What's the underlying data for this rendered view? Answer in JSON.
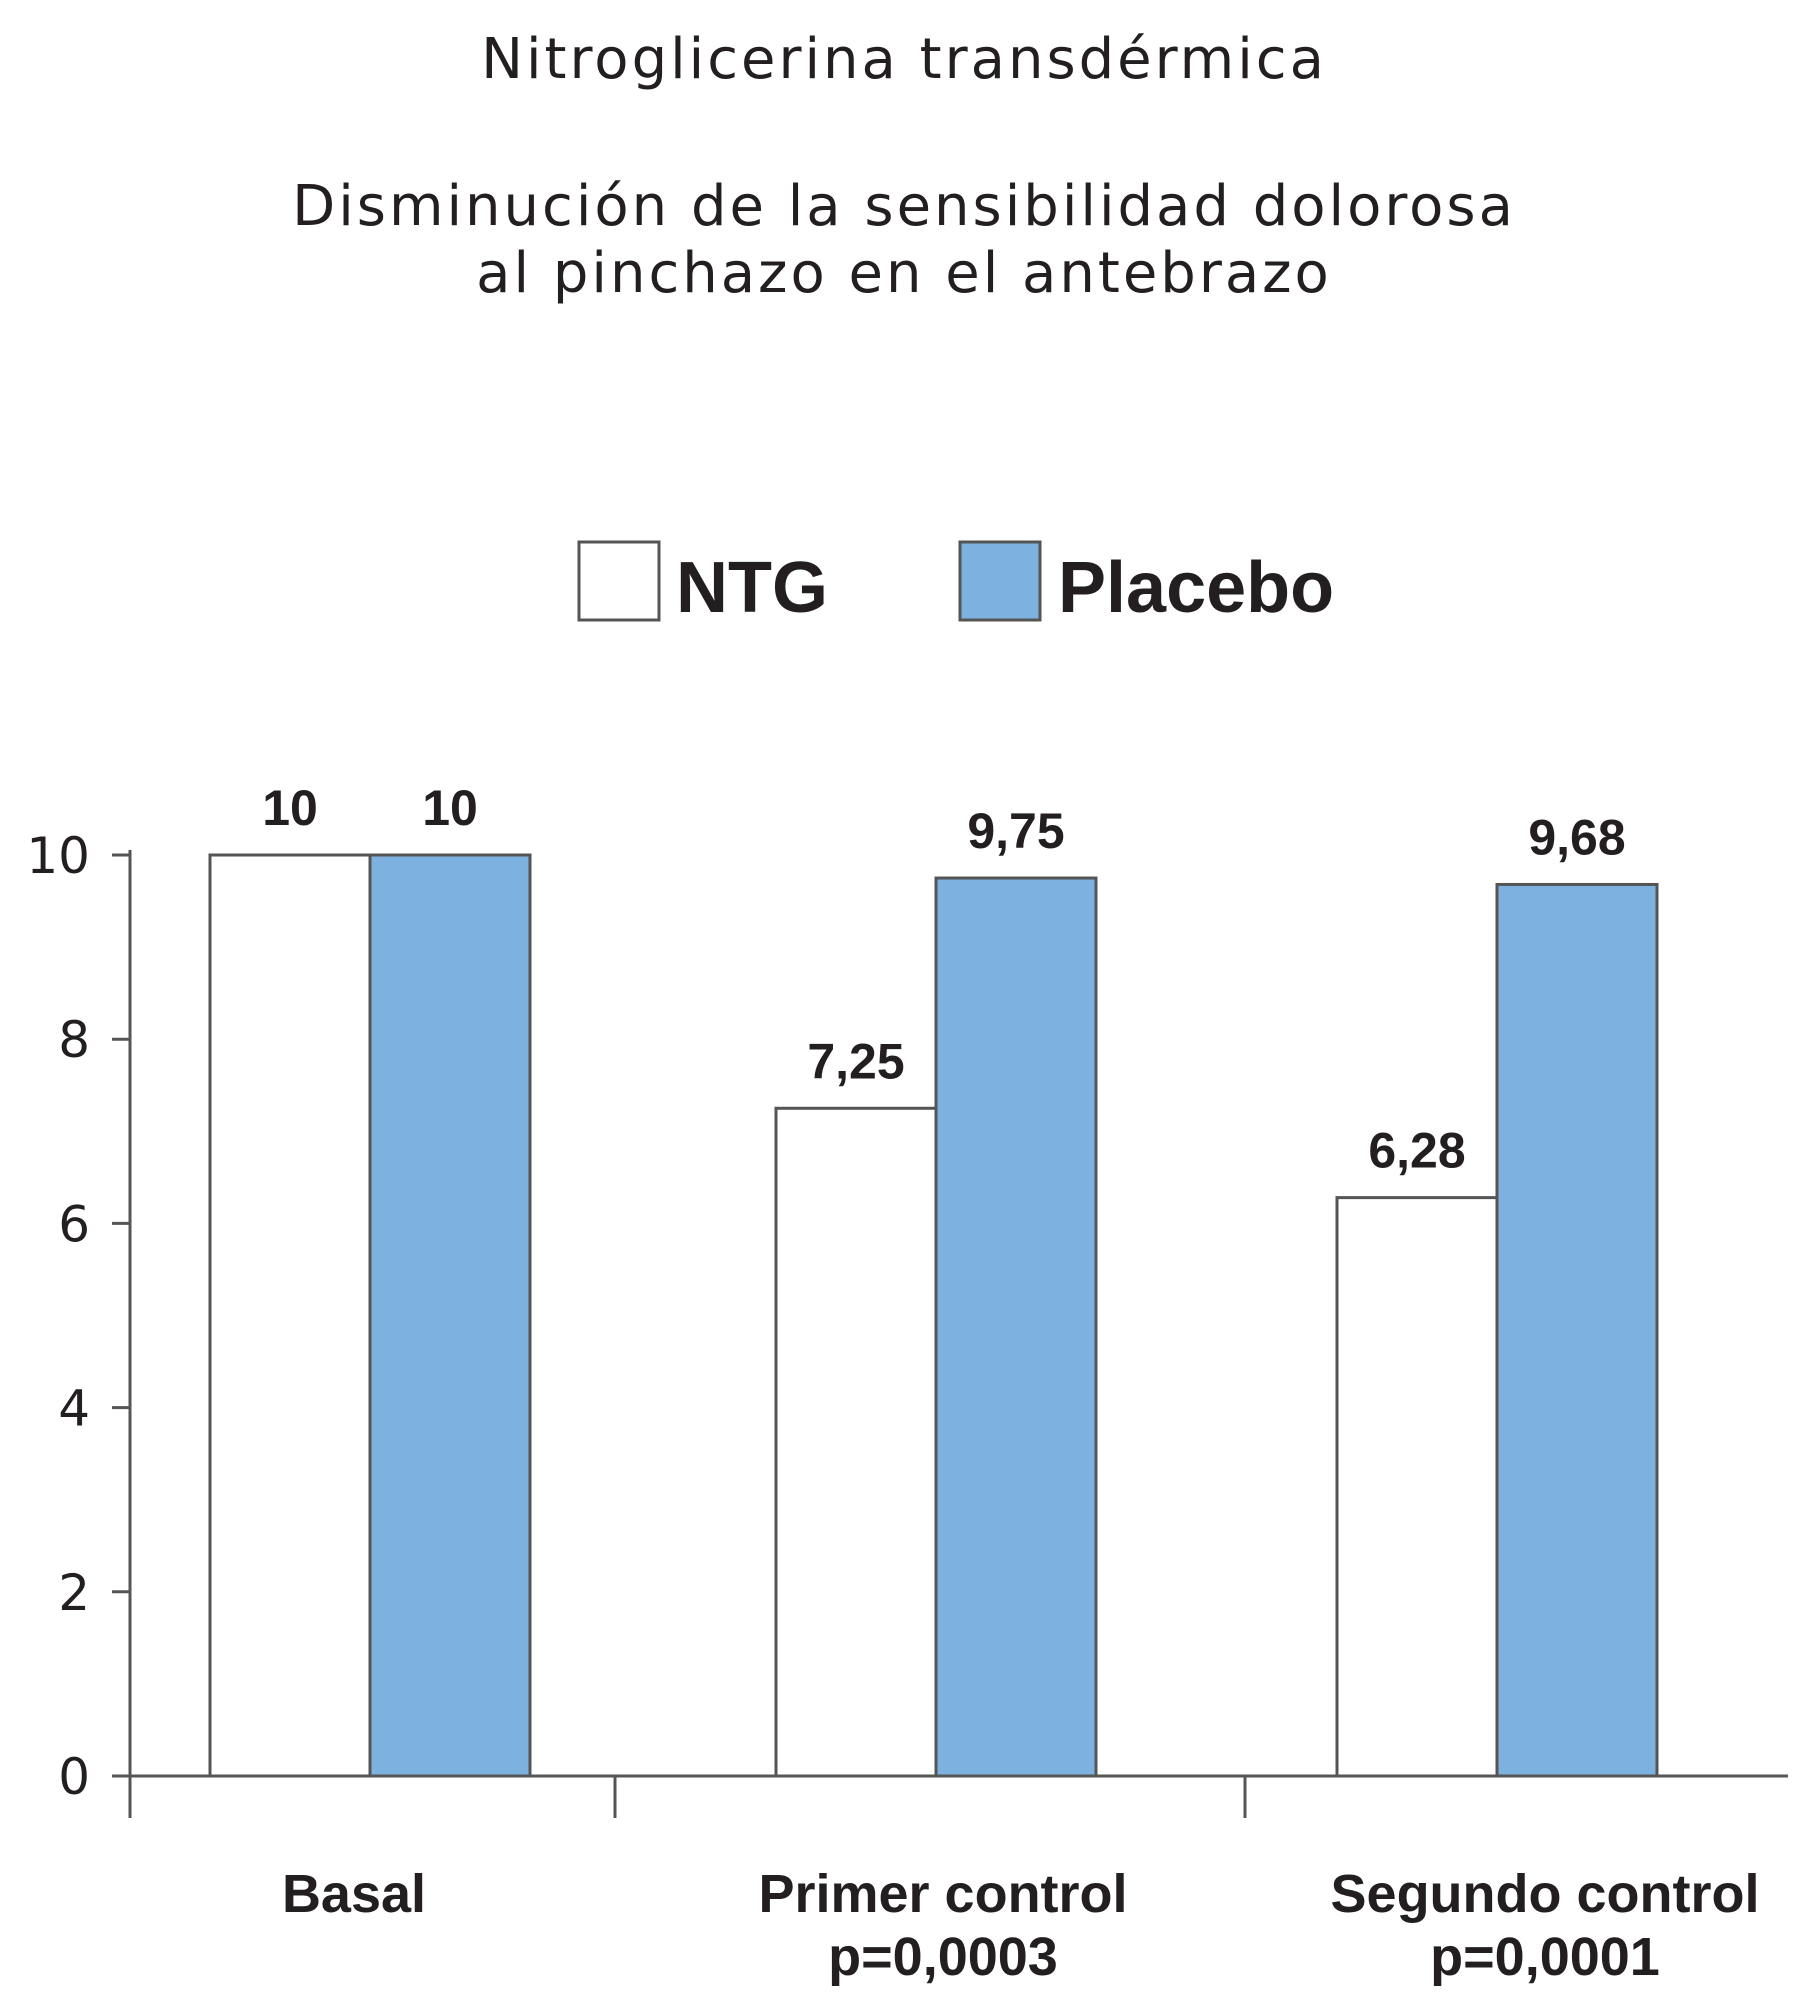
{
  "chart_data": {
    "type": "bar",
    "title": "Nitroglicerina transdérmica",
    "subtitle": [
      "Disminución de la sensibilidad dolorosa",
      "al pinchazo en el antebrazo"
    ],
    "categories": [
      {
        "label": "Basal",
        "note": ""
      },
      {
        "label": "Primer control",
        "note": "p=0,0003"
      },
      {
        "label": "Segundo control",
        "note": "p=0,0001"
      }
    ],
    "series": [
      {
        "name": "NTG",
        "color": "#ffffff",
        "values": [
          10,
          7.25,
          6.28
        ],
        "labels": [
          "10",
          "7,25",
          "6,28"
        ]
      },
      {
        "name": "Placebo",
        "color": "#7db1e0",
        "values": [
          10,
          9.75,
          9.68
        ],
        "labels": [
          "10",
          "9,75",
          "9,68"
        ]
      }
    ],
    "yticks": [
      "0",
      "2",
      "4",
      "6",
      "8",
      "10"
    ],
    "ylim": [
      0,
      10
    ],
    "xlabel": "",
    "ylabel": "",
    "legend_position": "top-center",
    "grid": false
  }
}
